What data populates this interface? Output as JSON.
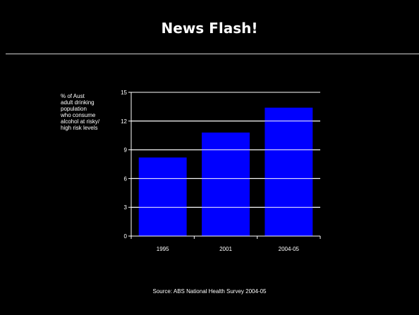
{
  "slide": {
    "title": "News Flash!",
    "source": "Source: ABS National Health Survey 2004-05"
  },
  "colors": {
    "background": "#000000",
    "bar": "#0000ff",
    "gridline": "#ffffff",
    "text": "#ffffff"
  },
  "chart_data": {
    "type": "bar",
    "title": "",
    "xlabel": "",
    "ylabel": "% of Aust\nadult drinking\npopulation\nwho consume\nalcohol at risky/\nhigh risk levels",
    "categories": [
      "1995",
      "2001",
      "2004-05"
    ],
    "values": [
      8.2,
      10.8,
      13.4
    ],
    "ylim": [
      0,
      15
    ],
    "yticks": [
      "0",
      "3",
      "6",
      "9",
      "12",
      "15"
    ],
    "grid": true,
    "legend": "none"
  }
}
